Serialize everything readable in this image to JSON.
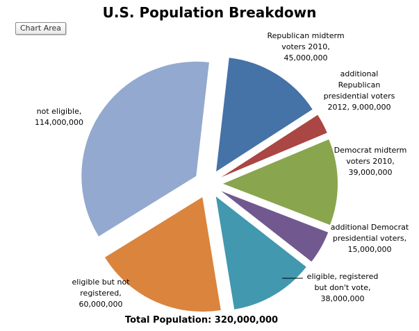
{
  "chart_area_label": "Chart Area",
  "chart_data": {
    "type": "pie",
    "title": "U.S. Population Breakdown",
    "footer": "Total Population: 320,000,000",
    "legend": "none",
    "slices": [
      {
        "name": "Republican midterm voters 2010",
        "value": 45000000,
        "label": "Republican midterm\nvoters 2010,\n45,000,000",
        "color": "#4572A7"
      },
      {
        "name": "additional Republican presidential voters 2012",
        "value": 9000000,
        "label": "additional\nRepublican\npresidential voters\n2012,  9,000,000",
        "color": "#AA4643"
      },
      {
        "name": "Democrat midterm voters 2010",
        "value": 39000000,
        "label": "Democrat midterm\nvoters 2010,\n39,000,000",
        "color": "#89A54E"
      },
      {
        "name": "additional Democrat presidential voters",
        "value": 15000000,
        "label": "additional Democrat\npresidential voters,\n15,000,000",
        "color": "#71588F"
      },
      {
        "name": "eligible, registered but don't vote",
        "value": 38000000,
        "label": "eligible, registered\nbut don't vote,\n38,000,000",
        "color": "#4198AF"
      },
      {
        "name": "eligible but not registered",
        "value": 60000000,
        "label": "eligible but not\nregistered,\n60,000,000",
        "color": "#DB843D"
      },
      {
        "name": "not eligible",
        "value": 114000000,
        "label": "not eligible,\n114,000,000",
        "color": "#93A9CF"
      }
    ]
  }
}
